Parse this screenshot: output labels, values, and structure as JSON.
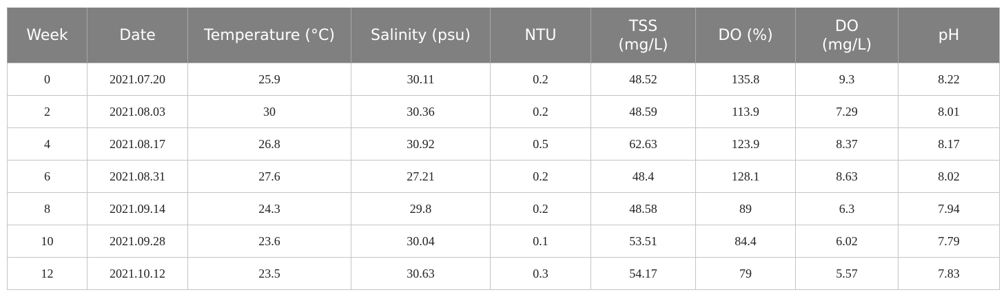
{
  "table": {
    "headers": [
      "Week",
      "Date",
      "Temperature (°C)",
      "Salinity (psu)",
      "NTU",
      "TSS\n(mg/L)",
      "DO (%)",
      "DO\n(mg/L)",
      "pH"
    ],
    "rows": [
      [
        "0",
        "2021.07.20",
        "25.9",
        "30.11",
        "0.2",
        "48.52",
        "135.8",
        "9.3",
        "8.22"
      ],
      [
        "2",
        "2021.08.03",
        "30",
        "30.36",
        "0.2",
        "48.59",
        "113.9",
        "7.29",
        "8.01"
      ],
      [
        "4",
        "2021.08.17",
        "26.8",
        "30.92",
        "0.5",
        "62.63",
        "123.9",
        "8.37",
        "8.17"
      ],
      [
        "6",
        "2021.08.31",
        "27.6",
        "27.21",
        "0.2",
        "48.4",
        "128.1",
        "8.63",
        "8.02"
      ],
      [
        "8",
        "2021.09.14",
        "24.3",
        "29.8",
        "0.2",
        "48.58",
        "89",
        "6.3",
        "7.94"
      ],
      [
        "10",
        "2021.09.28",
        "23.6",
        "30.04",
        "0.1",
        "53.51",
        "84.4",
        "6.02",
        "7.79"
      ],
      [
        "12",
        "2021.10.12",
        "23.5",
        "30.63",
        "0.3",
        "54.17",
        "79",
        "5.57",
        "7.83"
      ]
    ]
  }
}
